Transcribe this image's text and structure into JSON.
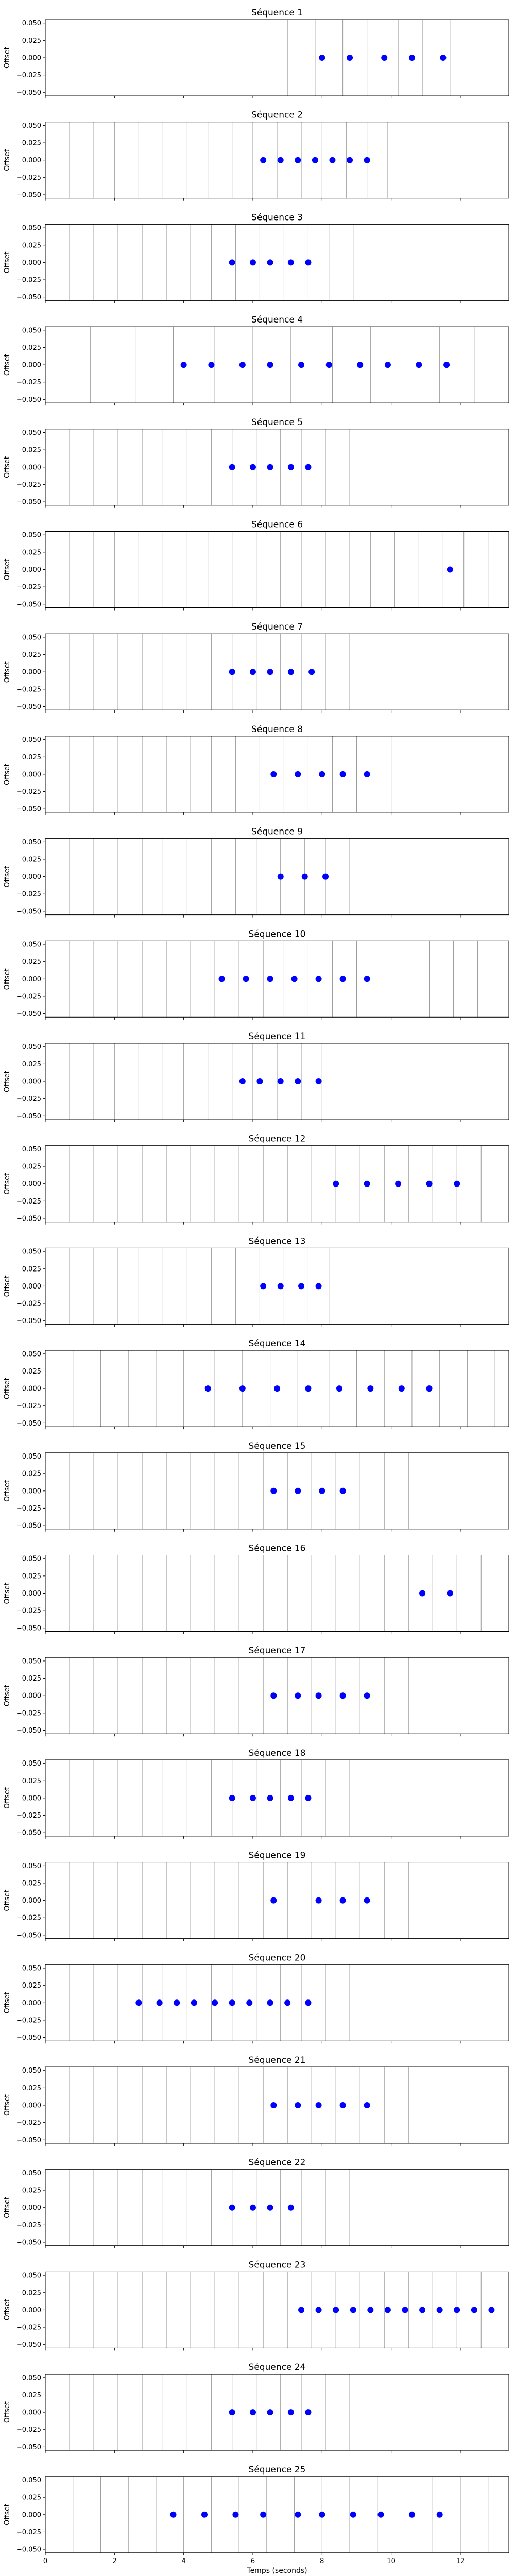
{
  "chart_data": [
    {
      "type": "scatter",
      "title": "Séquence 1",
      "ylabel": "Offset",
      "markers": [
        7.0,
        7.8,
        8.6,
        9.3,
        10.2,
        10.9,
        11.7
      ],
      "x": [
        8.0,
        8.8,
        9.8,
        10.6,
        11.5
      ],
      "y": [
        0,
        0,
        0,
        0,
        0
      ]
    },
    {
      "type": "scatter",
      "title": "Séquence 2",
      "ylabel": "Offset",
      "markers": [
        0.7,
        1.4,
        2.0,
        2.7,
        3.4,
        4.1,
        4.7,
        5.4,
        6.0,
        6.7,
        7.4,
        8.0,
        8.7,
        9.3,
        9.9
      ],
      "x": [
        6.3,
        6.8,
        7.3,
        7.8,
        8.3,
        8.8,
        9.3
      ],
      "y": [
        0,
        0,
        0,
        0,
        0,
        0,
        0
      ]
    },
    {
      "type": "scatter",
      "title": "Séquence 3",
      "ylabel": "Offset",
      "markers": [
        0.7,
        1.4,
        2.1,
        2.8,
        3.5,
        4.2,
        4.8,
        5.5,
        6.2,
        6.9,
        7.6,
        8.2,
        8.9
      ],
      "x": [
        5.4,
        6.0,
        6.5,
        7.1,
        7.6
      ],
      "y": [
        0,
        0,
        0,
        0,
        0
      ]
    },
    {
      "type": "scatter",
      "title": "Séquence 4",
      "ylabel": "Offset",
      "markers": [
        1.3,
        2.6,
        3.7,
        4.9,
        6.0,
        7.1,
        8.3,
        9.4,
        10.4,
        11.4,
        12.4
      ],
      "x": [
        4.0,
        4.8,
        5.7,
        6.5,
        7.4,
        8.2,
        9.1,
        9.9,
        10.8,
        11.6
      ],
      "y": [
        0,
        0,
        0,
        0,
        0,
        0,
        0,
        0,
        0,
        0
      ]
    },
    {
      "type": "scatter",
      "title": "Séquence 5",
      "ylabel": "Offset",
      "markers": [
        0.7,
        1.4,
        2.1,
        2.8,
        3.4,
        4.1,
        4.8,
        5.4,
        6.1,
        6.8,
        7.4,
        8.1,
        8.8
      ],
      "x": [
        5.4,
        6.0,
        6.5,
        7.1,
        7.6
      ],
      "y": [
        0,
        0,
        0,
        0,
        0
      ]
    },
    {
      "type": "scatter",
      "title": "Séquence 6",
      "ylabel": "Offset",
      "markers": [
        0.7,
        1.4,
        2.0,
        2.7,
        3.4,
        4.1,
        4.7,
        5.4,
        6.1,
        6.8,
        7.4,
        8.1,
        8.8,
        9.4,
        10.1,
        10.8,
        11.5,
        12.1,
        12.8
      ],
      "x": [
        11.7
      ],
      "y": [
        0
      ]
    },
    {
      "type": "scatter",
      "title": "Séquence 7",
      "ylabel": "Offset",
      "markers": [
        0.7,
        1.4,
        2.1,
        2.8,
        3.4,
        4.1,
        4.8,
        5.4,
        6.1,
        6.8,
        7.4,
        8.1,
        8.8
      ],
      "x": [
        5.4,
        6.0,
        6.5,
        7.1,
        7.7
      ],
      "y": [
        0,
        0,
        0,
        0,
        0
      ]
    },
    {
      "type": "scatter",
      "title": "Séquence 8",
      "ylabel": "Offset",
      "markers": [
        0.7,
        1.4,
        2.1,
        2.8,
        3.5,
        4.2,
        4.8,
        5.5,
        6.2,
        6.9,
        7.6,
        8.3,
        9.0,
        9.7,
        10.0
      ],
      "x": [
        6.6,
        7.3,
        8.0,
        8.6,
        9.3
      ],
      "y": [
        0,
        0,
        0,
        0,
        0
      ]
    },
    {
      "type": "scatter",
      "title": "Séquence 9",
      "ylabel": "Offset",
      "markers": [
        0.7,
        1.4,
        2.1,
        2.8,
        3.4,
        4.1,
        4.8,
        5.5,
        6.1,
        6.8,
        7.5,
        8.1,
        8.8
      ],
      "x": [
        6.8,
        7.5,
        8.1
      ],
      "y": [
        0,
        0,
        0
      ]
    },
    {
      "type": "scatter",
      "title": "Séquence 10",
      "ylabel": "Offset",
      "markers": [
        0.7,
        1.4,
        2.1,
        2.8,
        3.5,
        4.2,
        4.9,
        5.6,
        6.3,
        6.9,
        7.6,
        8.3,
        9.0,
        9.7,
        10.4,
        11.1,
        11.8,
        12.5
      ],
      "x": [
        5.1,
        5.8,
        6.5,
        7.2,
        7.9,
        8.6,
        9.3
      ],
      "y": [
        0,
        0,
        0,
        0,
        0,
        0,
        0
      ]
    },
    {
      "type": "scatter",
      "title": "Séquence 11",
      "ylabel": "Offset",
      "markers": [
        0.7,
        1.4,
        2.0,
        2.7,
        3.4,
        4.0,
        4.7,
        5.4,
        6.0,
        6.7,
        7.4,
        8.0
      ],
      "x": [
        5.7,
        6.2,
        6.8,
        7.3,
        7.9
      ],
      "y": [
        0,
        0,
        0,
        0,
        0
      ]
    },
    {
      "type": "scatter",
      "title": "Séquence 12",
      "ylabel": "Offset",
      "markers": [
        0.7,
        1.4,
        2.1,
        2.8,
        3.5,
        4.2,
        4.9,
        5.6,
        6.3,
        7.0,
        7.7,
        8.4,
        9.1,
        9.8,
        10.5,
        11.2,
        11.9,
        12.6
      ],
      "x": [
        8.4,
        9.3,
        10.2,
        11.1,
        11.9
      ],
      "y": [
        0,
        0,
        0,
        0,
        0
      ]
    },
    {
      "type": "scatter",
      "title": "Séquence 13",
      "ylabel": "Offset",
      "markers": [
        0.7,
        1.4,
        2.1,
        2.7,
        3.4,
        4.1,
        4.8,
        5.5,
        6.2,
        6.9,
        7.6,
        8.2
      ],
      "x": [
        6.3,
        6.8,
        7.4,
        7.9
      ],
      "y": [
        0,
        0,
        0,
        0
      ]
    },
    {
      "type": "scatter",
      "title": "Séquence 14",
      "ylabel": "Offset",
      "markers": [
        0.8,
        1.6,
        2.4,
        3.2,
        4.0,
        4.9,
        5.7,
        6.5,
        7.3,
        8.2,
        9.0,
        9.8,
        10.6,
        11.4,
        12.2,
        13.0
      ],
      "x": [
        4.7,
        5.7,
        6.7,
        7.6,
        8.5,
        9.4,
        10.3,
        11.1
      ],
      "y": [
        0,
        0,
        0,
        0,
        0,
        0,
        0,
        0
      ]
    },
    {
      "type": "scatter",
      "title": "Séquence 15",
      "ylabel": "Offset",
      "markers": [
        0.7,
        1.4,
        2.1,
        2.8,
        3.5,
        4.2,
        4.9,
        5.6,
        6.3,
        7.0,
        7.7,
        8.4,
        9.1,
        9.8,
        10.5
      ],
      "x": [
        6.6,
        7.3,
        8.0,
        8.6
      ],
      "y": [
        0,
        0,
        0,
        0
      ]
    },
    {
      "type": "scatter",
      "title": "Séquence 16",
      "ylabel": "Offset",
      "markers": [
        0.7,
        1.4,
        2.1,
        2.8,
        3.5,
        4.2,
        4.9,
        5.6,
        6.3,
        7.0,
        7.7,
        8.4,
        9.1,
        9.8,
        10.5,
        11.2,
        11.9,
        12.6
      ],
      "x": [
        10.9,
        11.7
      ],
      "y": [
        0,
        0
      ]
    },
    {
      "type": "scatter",
      "title": "Séquence 17",
      "ylabel": "Offset",
      "markers": [
        0.7,
        1.4,
        2.1,
        2.8,
        3.5,
        4.2,
        4.9,
        5.6,
        6.3,
        7.0,
        7.7,
        8.4,
        9.1,
        9.8,
        10.5
      ],
      "x": [
        6.6,
        7.3,
        7.9,
        8.6,
        9.3
      ],
      "y": [
        0,
        0,
        0,
        0,
        0
      ]
    },
    {
      "type": "scatter",
      "title": "Séquence 18",
      "ylabel": "Offset",
      "markers": [
        0.7,
        1.4,
        2.1,
        2.8,
        3.4,
        4.1,
        4.8,
        5.4,
        6.1,
        6.8,
        7.4,
        8.1,
        8.8
      ],
      "x": [
        5.4,
        6.0,
        6.5,
        7.1,
        7.6
      ],
      "y": [
        0,
        0,
        0,
        0,
        0
      ]
    },
    {
      "type": "scatter",
      "title": "Séquence 19",
      "ylabel": "Offset",
      "markers": [
        0.7,
        1.4,
        2.1,
        2.8,
        3.5,
        4.2,
        4.9,
        5.6,
        6.3,
        7.0,
        7.7,
        8.4,
        9.1,
        9.8,
        10.5
      ],
      "x": [
        6.6,
        7.9,
        8.6,
        9.3
      ],
      "y": [
        0,
        0,
        0,
        0
      ]
    },
    {
      "type": "scatter",
      "title": "Séquence 20",
      "ylabel": "Offset",
      "markers": [
        0.7,
        1.4,
        2.1,
        2.8,
        3.4,
        4.1,
        4.8,
        5.4,
        6.1,
        6.8,
        7.4,
        8.1,
        8.8
      ],
      "x": [
        2.7,
        3.3,
        3.8,
        4.3,
        4.9,
        5.4,
        5.9,
        6.5,
        7.0,
        7.6
      ],
      "y": [
        0,
        0,
        0,
        0,
        0,
        0,
        0,
        0,
        0,
        0
      ]
    },
    {
      "type": "scatter",
      "title": "Séquence 21",
      "ylabel": "Offset",
      "markers": [
        0.7,
        1.4,
        2.1,
        2.8,
        3.5,
        4.2,
        4.9,
        5.6,
        6.3,
        7.0,
        7.7,
        8.4,
        9.1,
        9.8,
        10.5
      ],
      "x": [
        6.6,
        7.3,
        7.9,
        8.6,
        9.3
      ],
      "y": [
        0,
        0,
        0,
        0,
        0
      ]
    },
    {
      "type": "scatter",
      "title": "Séquence 22",
      "ylabel": "Offset",
      "markers": [
        0.7,
        1.4,
        2.1,
        2.8,
        3.4,
        4.1,
        4.8,
        5.4,
        6.1,
        6.8,
        7.4,
        8.1,
        8.8
      ],
      "x": [
        5.4,
        6.0,
        6.5,
        7.1
      ],
      "y": [
        0,
        0,
        0,
        0
      ]
    },
    {
      "type": "scatter",
      "title": "Séquence 23",
      "ylabel": "Offset",
      "markers": [
        0.7,
        1.4,
        2.1,
        2.8,
        3.5,
        4.2,
        4.9,
        5.6,
        6.3,
        7.0,
        7.7,
        8.4,
        9.1,
        9.8,
        10.5,
        11.2,
        11.9,
        12.6
      ],
      "x": [
        7.4,
        7.9,
        8.4,
        8.9,
        9.4,
        9.9,
        10.4,
        10.9,
        11.4,
        11.9,
        12.4,
        12.9
      ],
      "y": [
        0,
        0,
        0,
        0,
        0,
        0,
        0,
        0,
        0,
        0,
        0,
        0
      ]
    },
    {
      "type": "scatter",
      "title": "Séquence 24",
      "ylabel": "Offset",
      "markers": [
        0.7,
        1.4,
        2.1,
        2.8,
        3.4,
        4.1,
        4.8,
        5.4,
        6.1,
        6.8,
        7.4,
        8.1,
        8.8
      ],
      "x": [
        5.4,
        6.0,
        6.5,
        7.1,
        7.6
      ],
      "y": [
        0,
        0,
        0,
        0,
        0
      ]
    },
    {
      "type": "scatter",
      "title": "Séquence 25",
      "ylabel": "Offset",
      "xlabel": "Temps (seconds)",
      "markers": [
        0.8,
        1.6,
        2.4,
        3.2,
        4.0,
        4.8,
        5.6,
        6.4,
        7.2,
        8.0,
        8.8,
        9.6,
        10.4,
        11.2,
        12.0,
        12.8
      ],
      "x": [
        3.7,
        4.6,
        5.5,
        6.3,
        7.3,
        8.0,
        8.9,
        9.7,
        10.6,
        11.4
      ],
      "y": [
        0,
        0,
        0,
        0,
        0,
        0,
        0,
        0,
        0,
        0
      ]
    }
  ],
  "axes": {
    "xlim": [
      0,
      13.4
    ],
    "ylim": [
      -0.055,
      0.055
    ],
    "xticks": [
      0,
      2,
      4,
      6,
      8,
      10,
      12
    ],
    "yticks": [
      0.05,
      0.025,
      0.0,
      -0.025,
      -0.05
    ],
    "ytick_labels": [
      "0.050",
      "0.025",
      "0.000",
      "−0.025",
      "−0.050"
    ],
    "grid": false
  },
  "colors": {
    "points": "#0000ff",
    "marker_lines": "#9a9a9a",
    "axes": "#000000"
  }
}
